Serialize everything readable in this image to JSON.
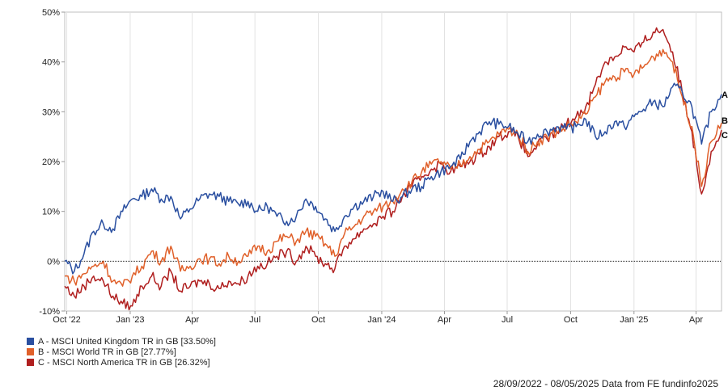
{
  "chart_data": {
    "type": "line",
    "title": "",
    "xlabel": "",
    "ylabel": "",
    "x_range": [
      "2022-09-28",
      "2025-05-08"
    ],
    "ylim": [
      -10,
      50
    ],
    "y_ticks": [
      -10,
      0,
      10,
      20,
      30,
      40,
      50
    ],
    "y_tick_labels": [
      "-10%",
      "0%",
      "10%",
      "20%",
      "30%",
      "40%",
      "50%"
    ],
    "x_ticks": [
      {
        "date": "2022-10-01",
        "label": "Oct '22"
      },
      {
        "date": "2023-01-01",
        "label": "Jan '23"
      },
      {
        "date": "2023-04-01",
        "label": "Apr"
      },
      {
        "date": "2023-07-01",
        "label": "Jul"
      },
      {
        "date": "2023-10-01",
        "label": "Oct"
      },
      {
        "date": "2024-01-01",
        "label": "Jan '24"
      },
      {
        "date": "2024-04-01",
        "label": "Apr"
      },
      {
        "date": "2024-07-01",
        "label": "Jul"
      },
      {
        "date": "2024-10-01",
        "label": "Oct"
      },
      {
        "date": "2025-01-01",
        "label": "Jan '25"
      },
      {
        "date": "2025-04-01",
        "label": "Apr"
      }
    ],
    "grid": {
      "vertical": true,
      "horizontal": false
    },
    "zero_line": true,
    "legend_position": "bottom-left",
    "series": [
      {
        "letter": "A",
        "name": "A - MSCI United Kingdom TR in GB [33.50%]",
        "color": "#2a4fa0",
        "dates": [
          "2022-09-28",
          "2022-10-12",
          "2022-10-26",
          "2022-11-09",
          "2022-11-23",
          "2022-12-07",
          "2022-12-21",
          "2023-01-04",
          "2023-01-18",
          "2023-02-01",
          "2023-02-15",
          "2023-03-01",
          "2023-03-15",
          "2023-03-29",
          "2023-04-12",
          "2023-04-26",
          "2023-05-10",
          "2023-05-24",
          "2023-06-07",
          "2023-06-21",
          "2023-07-05",
          "2023-07-19",
          "2023-08-02",
          "2023-08-16",
          "2023-08-30",
          "2023-09-13",
          "2023-09-27",
          "2023-10-11",
          "2023-10-25",
          "2023-11-08",
          "2023-11-22",
          "2023-12-06",
          "2023-12-20",
          "2024-01-03",
          "2024-01-17",
          "2024-01-31",
          "2024-02-14",
          "2024-02-28",
          "2024-03-13",
          "2024-03-27",
          "2024-04-10",
          "2024-04-24",
          "2024-05-08",
          "2024-05-22",
          "2024-06-05",
          "2024-06-19",
          "2024-07-03",
          "2024-07-17",
          "2024-07-31",
          "2024-08-14",
          "2024-08-28",
          "2024-09-11",
          "2024-09-25",
          "2024-10-09",
          "2024-10-23",
          "2024-11-06",
          "2024-11-20",
          "2024-12-04",
          "2024-12-18",
          "2025-01-01",
          "2025-01-15",
          "2025-01-29",
          "2025-02-12",
          "2025-02-26",
          "2025-03-12",
          "2025-03-26",
          "2025-04-09",
          "2025-04-23",
          "2025-05-08"
        ],
        "values": [
          0.0,
          -2.0,
          1.5,
          6.0,
          7.5,
          6.5,
          10.0,
          12.5,
          13.0,
          14.5,
          12.5,
          13.0,
          8.5,
          10.5,
          12.5,
          13.5,
          13.0,
          12.0,
          11.5,
          12.0,
          10.0,
          11.0,
          9.0,
          8.0,
          9.0,
          12.5,
          11.0,
          8.5,
          6.0,
          9.0,
          11.0,
          12.0,
          13.0,
          14.0,
          12.0,
          13.0,
          14.5,
          15.0,
          17.0,
          18.0,
          19.0,
          20.5,
          24.0,
          26.0,
          28.0,
          27.5,
          27.0,
          25.5,
          24.0,
          25.5,
          26.0,
          27.0,
          26.5,
          27.0,
          28.5,
          25.0,
          26.0,
          28.0,
          27.0,
          29.0,
          30.5,
          32.0,
          31.0,
          35.0,
          34.0,
          31.0,
          23.5,
          30.0,
          33.5
        ]
      },
      {
        "letter": "B",
        "name": "B - MSCI World TR in GB [27.77%]",
        "color": "#e0602a",
        "dates": [
          "2022-09-28",
          "2022-10-12",
          "2022-10-26",
          "2022-11-09",
          "2022-11-23",
          "2022-12-07",
          "2022-12-21",
          "2023-01-04",
          "2023-01-18",
          "2023-02-01",
          "2023-02-15",
          "2023-03-01",
          "2023-03-15",
          "2023-03-29",
          "2023-04-12",
          "2023-04-26",
          "2023-05-10",
          "2023-05-24",
          "2023-06-07",
          "2023-06-21",
          "2023-07-05",
          "2023-07-19",
          "2023-08-02",
          "2023-08-16",
          "2023-08-30",
          "2023-09-13",
          "2023-09-27",
          "2023-10-11",
          "2023-10-25",
          "2023-11-08",
          "2023-11-22",
          "2023-12-06",
          "2023-12-20",
          "2024-01-03",
          "2024-01-17",
          "2024-01-31",
          "2024-02-14",
          "2024-02-28",
          "2024-03-13",
          "2024-03-27",
          "2024-04-10",
          "2024-04-24",
          "2024-05-08",
          "2024-05-22",
          "2024-06-05",
          "2024-06-19",
          "2024-07-03",
          "2024-07-17",
          "2024-07-31",
          "2024-08-14",
          "2024-08-28",
          "2024-09-11",
          "2024-09-25",
          "2024-10-09",
          "2024-10-23",
          "2024-11-06",
          "2024-11-20",
          "2024-12-04",
          "2024-12-18",
          "2025-01-01",
          "2025-01-15",
          "2025-01-29",
          "2025-02-12",
          "2025-02-26",
          "2025-03-12",
          "2025-03-26",
          "2025-04-09",
          "2025-04-23",
          "2025-05-08"
        ],
        "values": [
          -3.0,
          -4.0,
          -2.5,
          -1.0,
          0.0,
          -4.0,
          -5.0,
          -3.0,
          -1.0,
          2.0,
          0.0,
          3.0,
          -2.0,
          -1.0,
          0.5,
          0.5,
          -0.5,
          1.0,
          0.0,
          1.0,
          3.0,
          2.0,
          4.0,
          5.0,
          4.0,
          6.0,
          5.0,
          3.5,
          1.0,
          5.5,
          7.0,
          9.0,
          10.0,
          11.0,
          12.0,
          14.5,
          16.0,
          18.0,
          19.5,
          20.0,
          18.5,
          19.5,
          21.0,
          22.5,
          24.0,
          25.5,
          26.5,
          25.5,
          22.0,
          24.0,
          25.0,
          26.0,
          27.0,
          28.0,
          29.5,
          33.0,
          36.0,
          37.0,
          38.0,
          37.5,
          39.0,
          41.0,
          42.5,
          40.0,
          33.0,
          27.0,
          15.0,
          24.0,
          27.77
        ]
      },
      {
        "letter": "C",
        "name": "C - MSCI North America TR in GB [26.32%]",
        "color": "#b01f1f",
        "dates": [
          "2022-09-28",
          "2022-10-12",
          "2022-10-26",
          "2022-11-09",
          "2022-11-23",
          "2022-12-07",
          "2022-12-21",
          "2023-01-04",
          "2023-01-18",
          "2023-02-01",
          "2023-02-15",
          "2023-03-01",
          "2023-03-15",
          "2023-03-29",
          "2023-04-12",
          "2023-04-26",
          "2023-05-10",
          "2023-05-24",
          "2023-06-07",
          "2023-06-21",
          "2023-07-05",
          "2023-07-19",
          "2023-08-02",
          "2023-08-16",
          "2023-08-30",
          "2023-09-13",
          "2023-09-27",
          "2023-10-11",
          "2023-10-25",
          "2023-11-08",
          "2023-11-22",
          "2023-12-06",
          "2023-12-20",
          "2024-01-03",
          "2024-01-17",
          "2024-01-31",
          "2024-02-14",
          "2024-02-28",
          "2024-03-13",
          "2024-03-27",
          "2024-04-10",
          "2024-04-24",
          "2024-05-08",
          "2024-05-22",
          "2024-06-05",
          "2024-06-19",
          "2024-07-03",
          "2024-07-17",
          "2024-07-31",
          "2024-08-14",
          "2024-08-28",
          "2024-09-11",
          "2024-09-25",
          "2024-10-09",
          "2024-10-23",
          "2024-11-06",
          "2024-11-20",
          "2024-12-04",
          "2024-12-18",
          "2025-01-01",
          "2025-01-15",
          "2025-01-29",
          "2025-02-12",
          "2025-02-26",
          "2025-03-12",
          "2025-03-26",
          "2025-04-09",
          "2025-04-23",
          "2025-05-08"
        ],
        "values": [
          -5.0,
          -7.0,
          -5.0,
          -3.0,
          -4.0,
          -7.0,
          -8.5,
          -9.0,
          -5.0,
          -3.0,
          -5.0,
          -2.0,
          -6.0,
          -5.0,
          -4.0,
          -4.5,
          -5.5,
          -4.0,
          -4.5,
          -3.0,
          -1.0,
          -0.5,
          1.0,
          2.0,
          0.0,
          3.0,
          1.0,
          -0.5,
          -1.5,
          3.0,
          4.5,
          6.5,
          7.5,
          9.0,
          10.0,
          13.0,
          15.0,
          17.0,
          18.5,
          19.5,
          18.0,
          19.0,
          20.0,
          21.5,
          23.0,
          25.0,
          26.0,
          25.0,
          21.0,
          23.5,
          24.5,
          26.0,
          27.5,
          29.0,
          31.0,
          35.5,
          40.0,
          41.0,
          43.0,
          42.0,
          44.0,
          46.0,
          46.5,
          42.0,
          34.0,
          26.0,
          13.5,
          22.0,
          26.32
        ]
      }
    ]
  },
  "footer": {
    "text": "28/09/2022 - 08/05/2025 Data from FE fundinfo2025"
  }
}
